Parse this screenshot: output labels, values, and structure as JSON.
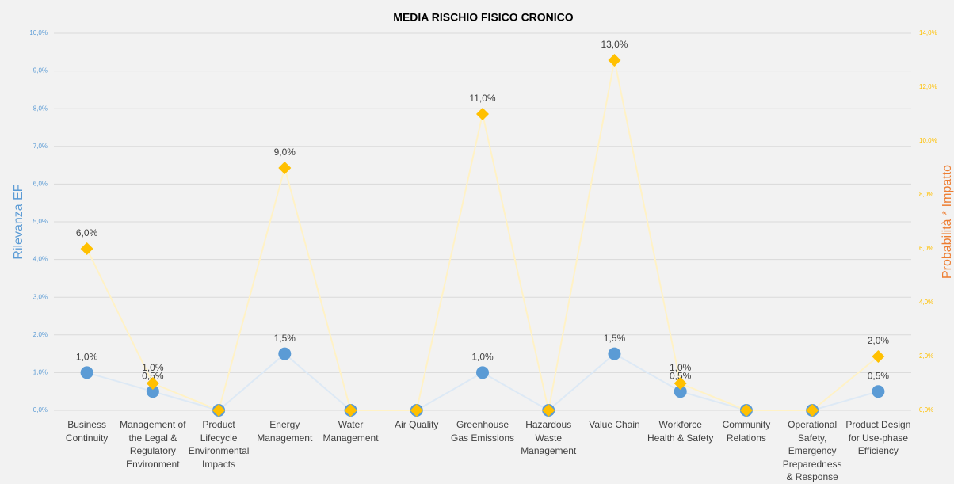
{
  "chart_data": {
    "type": "line",
    "title": "MEDIA RISCHIO FISICO CRONICO",
    "ylabel": "Rilevanza EF",
    "y2label": "Probabilità * Impatto",
    "categories": [
      "Business Continuity",
      "Management of the Legal & Regulatory Environment",
      "Product Lifecycle Environmental Impacts",
      "Energy Management",
      "Water Management",
      "Air Quality",
      "Greenhouse Gas Emissions",
      "Hazardous Waste Management",
      "Value Chain",
      "Workforce Health & Safety",
      "Community Relations",
      "Operational Safety, Emergency Preparedness & Response",
      "Product Design for Use-phase Efficiency"
    ],
    "series": [
      {
        "color": "#5b9bd5",
        "line_color": "#dde9f5",
        "marker": "circle",
        "axis": "y",
        "values": [
          1.0,
          0.5,
          0,
          1.5,
          0,
          0,
          1.0,
          0,
          1.5,
          0.5,
          0,
          0,
          0.5
        ],
        "value_labels": [
          "1,0%",
          "0,5%",
          null,
          "1,5%",
          null,
          null,
          "1,0%",
          null,
          "1,5%",
          "0,5%",
          null,
          null,
          "0,5%"
        ]
      },
      {
        "color": "#ffc000",
        "line_color": "#fff2c6",
        "marker": "diamond",
        "axis": "y2",
        "values": [
          6.0,
          1.0,
          0,
          9.0,
          0,
          0,
          11.0,
          0,
          13.0,
          1.0,
          0,
          0,
          2.0
        ],
        "value_labels": [
          "6,0%",
          "1,0%",
          null,
          "9,0%",
          null,
          null,
          "11,0%",
          null,
          "13,0%",
          "1,0%",
          null,
          null,
          "2,0%"
        ]
      }
    ],
    "ylim": [
      0,
      10
    ],
    "yticks": [
      {
        "value": 0,
        "label": "0,0%"
      },
      {
        "value": 1,
        "label": "1,0%"
      },
      {
        "value": 2,
        "label": "2,0%"
      },
      {
        "value": 3,
        "label": "3,0%"
      },
      {
        "value": 4,
        "label": "4,0%"
      },
      {
        "value": 5,
        "label": "5,0%"
      },
      {
        "value": 6,
        "label": "6,0%"
      },
      {
        "value": 7,
        "label": "7,0%"
      },
      {
        "value": 8,
        "label": "8,0%"
      },
      {
        "value": 9,
        "label": "9,0%"
      },
      {
        "value": 10,
        "label": "10,0%"
      }
    ],
    "y2lim": [
      0,
      14
    ],
    "y2ticks": [
      {
        "value": 0,
        "label": "0,0%"
      },
      {
        "value": 2,
        "label": "2,0%"
      },
      {
        "value": 4,
        "label": "4,0%"
      },
      {
        "value": 6,
        "label": "6,0%"
      },
      {
        "value": 8,
        "label": "8,0%"
      },
      {
        "value": 10,
        "label": "10,0%"
      },
      {
        "value": 12,
        "label": "12,0%"
      },
      {
        "value": 14,
        "label": "14,0%"
      }
    ],
    "grid": true,
    "ytick_color": "#5b9bd5",
    "y2tick_color": "#ffc000",
    "ylabel_color": "#5b9bd5",
    "y2label_color": "#ed7d31"
  }
}
